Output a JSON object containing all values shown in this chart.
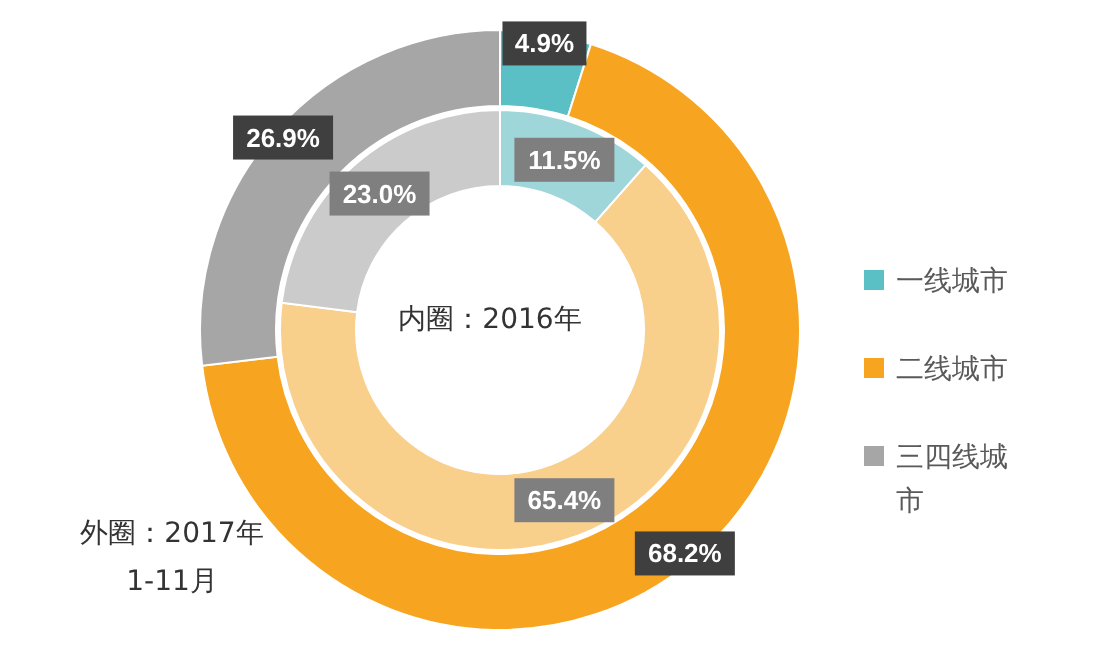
{
  "chart_data": {
    "type": "donut",
    "categories": [
      "一线城市",
      "二线城市",
      "三四线城市"
    ],
    "series": [
      {
        "values": [
          4.9,
          68.2,
          26.9
        ],
        "colors": [
          "#5bbfc6",
          "#f7a520",
          "#a6a6a6"
        ],
        "value_labels": [
          "4.9%",
          "68.2%",
          "26.9%"
        ]
      },
      {
        "values": [
          11.5,
          65.4,
          23.0
        ],
        "colors": [
          "#9ed6da",
          "#f9cf8c",
          "#cbcbcb"
        ],
        "value_labels": [
          "11.5%",
          "65.4%",
          "23.0%"
        ]
      }
    ],
    "data_labels": true,
    "legend": "right",
    "annotations": [
      "内圈：2016年",
      "外圈：2017年1-11月"
    ]
  }
}
